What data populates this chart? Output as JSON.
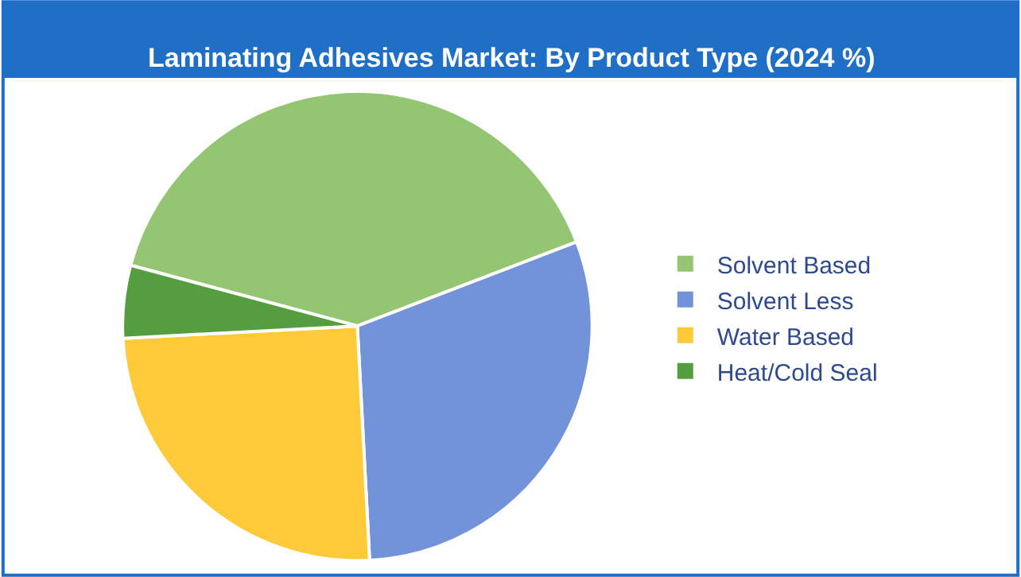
{
  "chart_data": {
    "type": "pie",
    "title": "Laminating Adhesives Market: By Product Type (2024 %)",
    "categories": [
      "Solvent Based",
      "Solvent Less",
      "Water Based",
      "Heat/Cold Seal"
    ],
    "values": [
      40,
      30,
      25,
      5
    ],
    "colors": [
      "#93c572",
      "#7292da",
      "#ffca3a",
      "#559e3f"
    ],
    "legend": "right"
  }
}
